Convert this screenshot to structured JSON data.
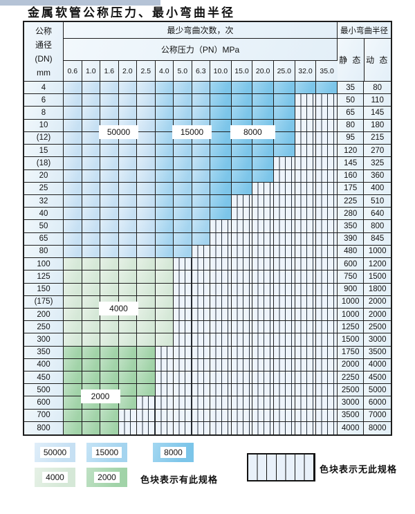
{
  "title": "金属软管公称压力、最小弯曲半径",
  "table": {
    "header": {
      "dn_lines": [
        "公称",
        "通径",
        "(DN)",
        "mm"
      ],
      "bend_cycles": "最少弯曲次数，次",
      "pressure": "公称压力（PN）MPa",
      "min_bend_radius": "最小弯曲半径",
      "static_label": "静 态",
      "dynamic_label": "动 态",
      "pressure_columns": [
        "0.6",
        "1.0",
        "1.6",
        "2.0",
        "2.5",
        "4.0",
        "5.0",
        "6.3",
        "10.0",
        "15.0",
        "20.0",
        "25.0",
        "32.0",
        "35.0"
      ]
    },
    "rows": [
      {
        "dn": "4",
        "colored": 14,
        "palette": "blue",
        "static": "35",
        "dynamic": "80"
      },
      {
        "dn": "6",
        "colored": 12,
        "palette": "blue",
        "static": "50",
        "dynamic": "110"
      },
      {
        "dn": "8",
        "colored": 12,
        "palette": "blue",
        "static": "65",
        "dynamic": "145"
      },
      {
        "dn": "10",
        "colored": 12,
        "palette": "blue",
        "static": "80",
        "dynamic": "180"
      },
      {
        "dn": "(12)",
        "colored": 12,
        "palette": "blue",
        "static": "95",
        "dynamic": "215"
      },
      {
        "dn": "15",
        "colored": 12,
        "palette": "blue",
        "static": "120",
        "dynamic": "270"
      },
      {
        "dn": "(18)",
        "colored": 11,
        "palette": "blue",
        "static": "145",
        "dynamic": "325"
      },
      {
        "dn": "20",
        "colored": 11,
        "palette": "blue",
        "static": "160",
        "dynamic": "360"
      },
      {
        "dn": "25",
        "colored": 10,
        "palette": "blue",
        "static": "175",
        "dynamic": "400"
      },
      {
        "dn": "32",
        "colored": 9,
        "palette": "blue",
        "static": "225",
        "dynamic": "510"
      },
      {
        "dn": "40",
        "colored": 9,
        "palette": "blue",
        "static": "280",
        "dynamic": "640"
      },
      {
        "dn": "50",
        "colored": 8,
        "palette": "blue",
        "static": "350",
        "dynamic": "800"
      },
      {
        "dn": "65",
        "colored": 8,
        "palette": "blue",
        "static": "390",
        "dynamic": "845"
      },
      {
        "dn": "80",
        "colored": 7,
        "palette": "blue",
        "static": "480",
        "dynamic": "1000"
      },
      {
        "dn": "100",
        "colored": 6,
        "palette": "4000",
        "static": "600",
        "dynamic": "1200"
      },
      {
        "dn": "125",
        "colored": 6,
        "palette": "4000",
        "static": "750",
        "dynamic": "1500"
      },
      {
        "dn": "150",
        "colored": 6,
        "palette": "4000",
        "static": "900",
        "dynamic": "1800"
      },
      {
        "dn": "(175)",
        "colored": 6,
        "palette": "4000",
        "static": "1000",
        "dynamic": "2000"
      },
      {
        "dn": "200",
        "colored": 6,
        "palette": "4000",
        "static": "1000",
        "dynamic": "2000"
      },
      {
        "dn": "250",
        "colored": 6,
        "palette": "4000",
        "static": "1250",
        "dynamic": "2500"
      },
      {
        "dn": "300",
        "colored": 6,
        "palette": "4000",
        "static": "1500",
        "dynamic": "3000"
      },
      {
        "dn": "350",
        "colored": 5,
        "palette": "2000",
        "static": "1750",
        "dynamic": "3500"
      },
      {
        "dn": "400",
        "colored": 5,
        "palette": "2000",
        "static": "2000",
        "dynamic": "4000"
      },
      {
        "dn": "450",
        "colored": 5,
        "palette": "2000",
        "static": "2250",
        "dynamic": "4500"
      },
      {
        "dn": "500",
        "colored": 5,
        "palette": "2000",
        "static": "2500",
        "dynamic": "5000"
      },
      {
        "dn": "600",
        "colored": 4,
        "palette": "2000",
        "static": "3000",
        "dynamic": "6000"
      },
      {
        "dn": "700",
        "colored": 3,
        "palette": "2000",
        "static": "3500",
        "dynamic": "7000"
      },
      {
        "dn": "800",
        "colored": 3,
        "palette": "2000",
        "static": "4000",
        "dynamic": "8000"
      }
    ],
    "overlay_labels": [
      {
        "text": "50000",
        "col_start": 2,
        "col_end": 3,
        "row_boundary": 4
      },
      {
        "text": "15000",
        "col_start": 6,
        "col_end": 7,
        "row_boundary": 4
      },
      {
        "text": "8000",
        "col_start": 9,
        "col_end": 10,
        "row_boundary": 4
      },
      {
        "text": "4000",
        "col_start": 2,
        "col_end": 3,
        "row_boundary": 18
      },
      {
        "text": "2000",
        "col_start": 1,
        "col_end": 2,
        "row_boundary": 25
      }
    ]
  },
  "legend": {
    "items": [
      {
        "label": "50000",
        "band": "50000"
      },
      {
        "label": "15000",
        "band": "15000"
      },
      {
        "label": "8000",
        "band": "8000"
      },
      {
        "label": "4000",
        "band": "4000"
      },
      {
        "label": "2000",
        "band": "2000"
      }
    ],
    "caption_has_spec": "色块表示有此规格",
    "caption_no_spec": "色块表示无此规格"
  },
  "colors": {
    "cycles_50000": "#c6e0f3",
    "cycles_50000_light": "#e0eef9",
    "cycles_15000": "#a4d4ef",
    "cycles_15000_light": "#c6e4f6",
    "cycles_8000": "#7cc5e9",
    "cycles_8000_light": "#a3d7f1",
    "cycles_4000": "#d5e8d7",
    "cycles_4000_light": "#e6f1e6",
    "cycles_2000": "#a1d3a8",
    "cycles_2000_light": "#bfe1c4",
    "striped_bg": "#eef4fb",
    "grid_line": "#1c1c1c",
    "top_strip": "#b5c3d6"
  },
  "chart_data": {
    "type": "table",
    "title": "金属软管公称压力、最小弯曲半径",
    "pressure_columns_PN_MPa": [
      0.6,
      1.0,
      1.6,
      2.0,
      2.5,
      4.0,
      5.0,
      6.3,
      10.0,
      15.0,
      20.0,
      25.0,
      32.0,
      35.0
    ],
    "bend_cycle_bands_blue_rows": {
      "50000": "PN 0.6–2.5",
      "15000": "PN 4.0–6.3",
      "8000": "PN 10.0–35.0"
    },
    "bend_cycle_green_rows": {
      "4000": "DN 100–300",
      "2000": "DN 350–800"
    },
    "rows": [
      {
        "dn": "4",
        "max_pn": 35.0,
        "static_radius": 35,
        "dynamic_radius": 80
      },
      {
        "dn": "6",
        "max_pn": 25.0,
        "static_radius": 50,
        "dynamic_radius": 110
      },
      {
        "dn": "8",
        "max_pn": 25.0,
        "static_radius": 65,
        "dynamic_radius": 145
      },
      {
        "dn": "10",
        "max_pn": 25.0,
        "static_radius": 80,
        "dynamic_radius": 180
      },
      {
        "dn": "(12)",
        "max_pn": 25.0,
        "static_radius": 95,
        "dynamic_radius": 215
      },
      {
        "dn": "15",
        "max_pn": 25.0,
        "static_radius": 120,
        "dynamic_radius": 270
      },
      {
        "dn": "(18)",
        "max_pn": 20.0,
        "static_radius": 145,
        "dynamic_radius": 325
      },
      {
        "dn": "20",
        "max_pn": 20.0,
        "static_radius": 160,
        "dynamic_radius": 360
      },
      {
        "dn": "25",
        "max_pn": 15.0,
        "static_radius": 175,
        "dynamic_radius": 400
      },
      {
        "dn": "32",
        "max_pn": 10.0,
        "static_radius": 225,
        "dynamic_radius": 510
      },
      {
        "dn": "40",
        "max_pn": 10.0,
        "static_radius": 280,
        "dynamic_radius": 640
      },
      {
        "dn": "50",
        "max_pn": 6.3,
        "static_radius": 350,
        "dynamic_radius": 800
      },
      {
        "dn": "65",
        "max_pn": 6.3,
        "static_radius": 390,
        "dynamic_radius": 845
      },
      {
        "dn": "80",
        "max_pn": 5.0,
        "static_radius": 480,
        "dynamic_radius": 1000
      },
      {
        "dn": "100",
        "max_pn": 4.0,
        "static_radius": 600,
        "dynamic_radius": 1200
      },
      {
        "dn": "125",
        "max_pn": 4.0,
        "static_radius": 750,
        "dynamic_radius": 1500
      },
      {
        "dn": "150",
        "max_pn": 4.0,
        "static_radius": 900,
        "dynamic_radius": 1800
      },
      {
        "dn": "(175)",
        "max_pn": 4.0,
        "static_radius": 1000,
        "dynamic_radius": 2000
      },
      {
        "dn": "200",
        "max_pn": 4.0,
        "static_radius": 1000,
        "dynamic_radius": 2000
      },
      {
        "dn": "250",
        "max_pn": 4.0,
        "static_radius": 1250,
        "dynamic_radius": 2500
      },
      {
        "dn": "300",
        "max_pn": 4.0,
        "static_radius": 1500,
        "dynamic_radius": 3000
      },
      {
        "dn": "350",
        "max_pn": 2.5,
        "static_radius": 1750,
        "dynamic_radius": 3500
      },
      {
        "dn": "400",
        "max_pn": 2.5,
        "static_radius": 2000,
        "dynamic_radius": 4000
      },
      {
        "dn": "450",
        "max_pn": 2.5,
        "static_radius": 2250,
        "dynamic_radius": 4500
      },
      {
        "dn": "500",
        "max_pn": 2.5,
        "static_radius": 2500,
        "dynamic_radius": 5000
      },
      {
        "dn": "600",
        "max_pn": 2.0,
        "static_radius": 3000,
        "dynamic_radius": 6000
      },
      {
        "dn": "700",
        "max_pn": 1.6,
        "static_radius": 3500,
        "dynamic_radius": 7000
      },
      {
        "dn": "800",
        "max_pn": 1.6,
        "static_radius": 4000,
        "dynamic_radius": 8000
      }
    ]
  }
}
